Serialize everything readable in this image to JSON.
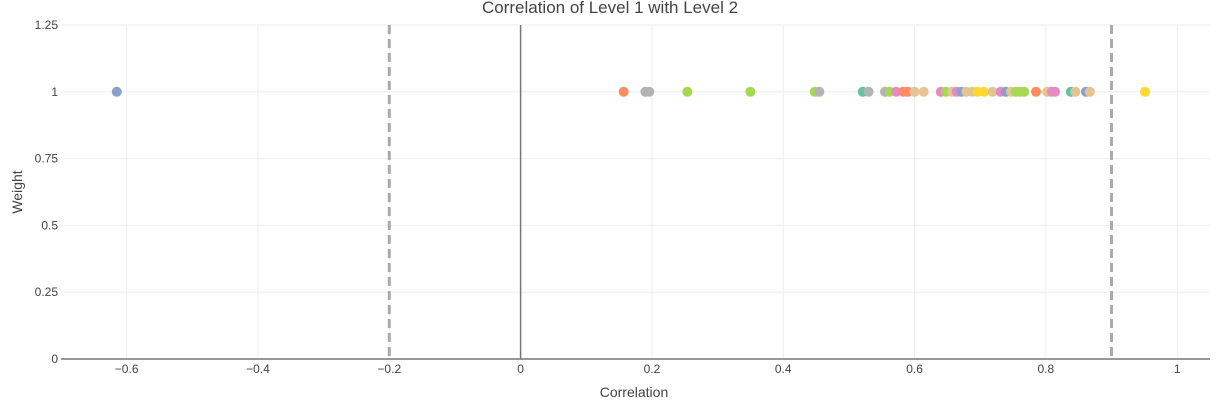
{
  "chart_data": {
    "type": "scatter",
    "title": "Correlation of Level 1 with Level 2",
    "xlabel": "Correlation",
    "ylabel": "Weight",
    "xlim": [
      -0.7,
      1.05
    ],
    "ylim": [
      0,
      1.25
    ],
    "x_ticks": [
      -0.6,
      -0.4,
      -0.2,
      0,
      0.2,
      0.4,
      0.6,
      0.8,
      1
    ],
    "x_tick_labels": [
      "−0.6",
      "−0.4",
      "−0.2",
      "0",
      "0.2",
      "0.4",
      "0.6",
      "0.8",
      "1"
    ],
    "y_ticks": [
      0,
      0.25,
      0.5,
      0.75,
      1,
      1.25
    ],
    "y_tick_labels": [
      "0",
      "0.25",
      "0.5",
      "0.75",
      "1",
      "1.25"
    ],
    "grid": true,
    "reference_lines": [
      {
        "axis": "x",
        "value": -0.2,
        "style": "dashed",
        "color": "#aaaaaa"
      },
      {
        "axis": "x",
        "value": 0.9,
        "style": "dashed",
        "color": "#aaaaaa"
      },
      {
        "axis": "x",
        "value": 0,
        "style": "solid",
        "color": "#777777"
      }
    ],
    "points": [
      {
        "x": -0.615,
        "y": 1,
        "color": "#8da0cb"
      },
      {
        "x": 0.157,
        "y": 1,
        "color": "#fc8d62"
      },
      {
        "x": 0.19,
        "y": 1,
        "color": "#b3b3b3"
      },
      {
        "x": 0.196,
        "y": 1,
        "color": "#b3b3b3"
      },
      {
        "x": 0.254,
        "y": 1,
        "color": "#a6d854"
      },
      {
        "x": 0.35,
        "y": 1,
        "color": "#a6d854"
      },
      {
        "x": 0.448,
        "y": 1,
        "color": "#a6d854"
      },
      {
        "x": 0.455,
        "y": 1,
        "color": "#b3b3b3"
      },
      {
        "x": 0.521,
        "y": 1,
        "color": "#66c2a5"
      },
      {
        "x": 0.53,
        "y": 1,
        "color": "#b3b3b3"
      },
      {
        "x": 0.555,
        "y": 1,
        "color": "#b3b3b3"
      },
      {
        "x": 0.562,
        "y": 1,
        "color": "#a6d854"
      },
      {
        "x": 0.572,
        "y": 1,
        "color": "#e78ac3"
      },
      {
        "x": 0.583,
        "y": 1,
        "color": "#fc8d62"
      },
      {
        "x": 0.59,
        "y": 1,
        "color": "#fc8d62"
      },
      {
        "x": 0.6,
        "y": 1,
        "color": "#e5c494"
      },
      {
        "x": 0.614,
        "y": 1,
        "color": "#e5c494"
      },
      {
        "x": 0.64,
        "y": 1,
        "color": "#e78ac3"
      },
      {
        "x": 0.648,
        "y": 1,
        "color": "#a6d854"
      },
      {
        "x": 0.657,
        "y": 1,
        "color": "#e5c494"
      },
      {
        "x": 0.664,
        "y": 1,
        "color": "#e78ac3"
      },
      {
        "x": 0.671,
        "y": 1,
        "color": "#8da0cb"
      },
      {
        "x": 0.679,
        "y": 1,
        "color": "#e5c494"
      },
      {
        "x": 0.688,
        "y": 1,
        "color": "#e5c494"
      },
      {
        "x": 0.696,
        "y": 1,
        "color": "#ffd92f"
      },
      {
        "x": 0.706,
        "y": 1,
        "color": "#ffd92f"
      },
      {
        "x": 0.719,
        "y": 1,
        "color": "#e5c494"
      },
      {
        "x": 0.731,
        "y": 1,
        "color": "#e78ac3"
      },
      {
        "x": 0.739,
        "y": 1,
        "color": "#8da0cb"
      },
      {
        "x": 0.747,
        "y": 1,
        "color": "#e5c494"
      },
      {
        "x": 0.754,
        "y": 1,
        "color": "#a6d854"
      },
      {
        "x": 0.761,
        "y": 1,
        "color": "#a6d854"
      },
      {
        "x": 0.767,
        "y": 1,
        "color": "#a6d854"
      },
      {
        "x": 0.785,
        "y": 1,
        "color": "#fc8d62"
      },
      {
        "x": 0.802,
        "y": 1,
        "color": "#e5c494"
      },
      {
        "x": 0.809,
        "y": 1,
        "color": "#e78ac3"
      },
      {
        "x": 0.814,
        "y": 1,
        "color": "#e78ac3"
      },
      {
        "x": 0.838,
        "y": 1,
        "color": "#66c2a5"
      },
      {
        "x": 0.845,
        "y": 1,
        "color": "#e5c494"
      },
      {
        "x": 0.861,
        "y": 1,
        "color": "#8da0cb"
      },
      {
        "x": 0.867,
        "y": 1,
        "color": "#e5c494"
      },
      {
        "x": 0.951,
        "y": 1,
        "color": "#ffd92f"
      }
    ]
  }
}
